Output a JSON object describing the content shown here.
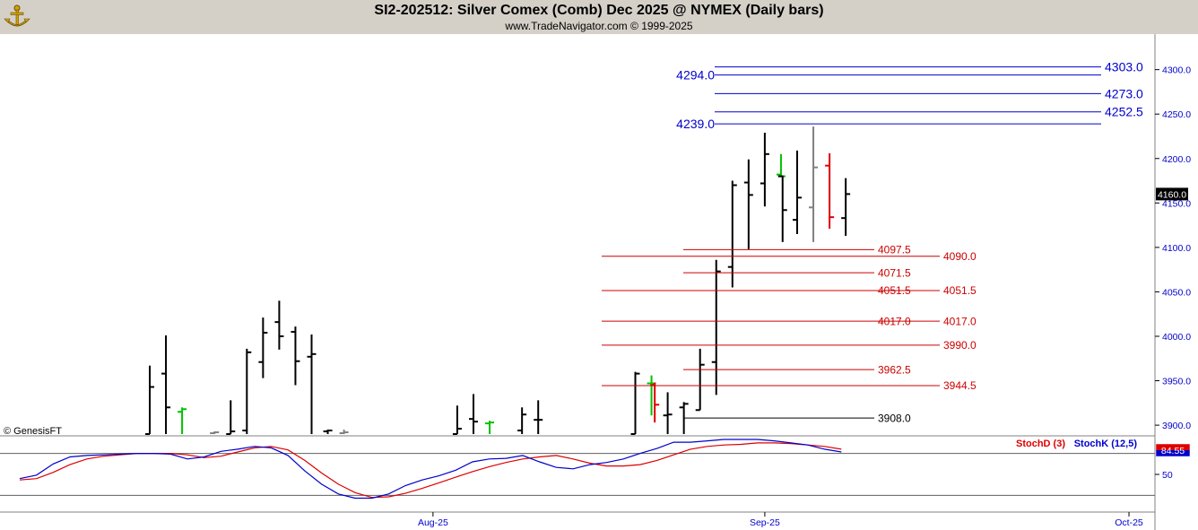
{
  "header": {
    "title": "SI2-202512:  Silver Comex (Comb) Dec 2025 @ NYMEX  (Daily bars)",
    "subtitle": "www.TradeNavigator.com © 1999-2025"
  },
  "colors": {
    "up": "#00c000",
    "down": "#e00000",
    "neutral": "#808080",
    "bar": "#000000",
    "fib_blue": "#0000cc",
    "fib_red": "#cc0000",
    "stoch_d": "#dd0000",
    "stoch_k": "#0000cc"
  },
  "chart_data": [
    {
      "type": "ohlc",
      "title": "SI2-202512:  Silver Comex (Comb) Dec 2025 @ NYMEX  (Daily bars)",
      "ylim": [
        3888,
        4340
      ],
      "yticks": [
        {
          "value": 3900,
          "label": "3900.0"
        },
        {
          "value": 3950,
          "label": "3950.0"
        },
        {
          "value": 4000,
          "label": "4000.0"
        },
        {
          "value": 4050,
          "label": "4050.0"
        },
        {
          "value": 4100,
          "label": "4100.0"
        },
        {
          "value": 4150,
          "label": "4150.0"
        },
        {
          "value": 4200,
          "label": "4200.0"
        },
        {
          "value": 4250,
          "label": "4250.0"
        },
        {
          "value": 4300,
          "label": "4300.0"
        }
      ],
      "last_price": {
        "value": 4160.0,
        "label": "4160.0"
      },
      "watermark": "© GenesisFT",
      "bars": [
        {
          "i": 6,
          "o": 3890,
          "h": 3967,
          "l": 3890,
          "c": 3943,
          "color": "bar"
        },
        {
          "i": 7,
          "o": 3958,
          "h": 4001,
          "l": 3890,
          "c": 3920,
          "color": "bar"
        },
        {
          "i": 8,
          "o": 3915,
          "h": 3920,
          "l": 3890,
          "c": 3918,
          "color": "up"
        },
        {
          "i": 10,
          "o": 3891,
          "h": 3893,
          "l": 3890,
          "c": 3892,
          "color": "neutral"
        },
        {
          "i": 11,
          "o": 3890,
          "h": 3928,
          "l": 3890,
          "c": 3893,
          "color": "bar"
        },
        {
          "i": 12,
          "o": 3894,
          "h": 3986,
          "l": 3890,
          "c": 3982,
          "color": "bar"
        },
        {
          "i": 13,
          "o": 3971,
          "h": 4021,
          "l": 3953,
          "c": 4004,
          "color": "bar"
        },
        {
          "i": 14,
          "o": 4016,
          "h": 4040,
          "l": 3985,
          "c": 4000,
          "color": "bar"
        },
        {
          "i": 15,
          "o": 4005,
          "h": 4011,
          "l": 3945,
          "c": 3972,
          "color": "bar"
        },
        {
          "i": 16,
          "o": 3977,
          "h": 4002,
          "l": 3890,
          "c": 3980,
          "color": "bar"
        },
        {
          "i": 17,
          "o": 3893,
          "h": 3895,
          "l": 3890,
          "c": 3894,
          "color": "bar"
        },
        {
          "i": 18,
          "o": 3891,
          "h": 3895,
          "l": 3890,
          "c": 3892,
          "color": "neutral"
        },
        {
          "i": 25,
          "o": 3890,
          "h": 3922,
          "l": 3890,
          "c": 3896,
          "color": "bar"
        },
        {
          "i": 26,
          "o": 3907,
          "h": 3935,
          "l": 3890,
          "c": 3904,
          "color": "bar"
        },
        {
          "i": 27,
          "o": 3902,
          "h": 3905,
          "l": 3890,
          "c": 3903,
          "color": "up"
        },
        {
          "i": 29,
          "o": 3894,
          "h": 3920,
          "l": 3890,
          "c": 3912,
          "color": "bar"
        },
        {
          "i": 30,
          "o": 3906,
          "h": 3928,
          "l": 3890,
          "c": 3906,
          "color": "bar"
        },
        {
          "i": 36,
          "o": 3890,
          "h": 3960,
          "l": 3890,
          "c": 3958,
          "color": "bar"
        },
        {
          "i": 37,
          "o": 3947,
          "h": 3956,
          "l": 3911,
          "c": 3947,
          "color": "up"
        },
        {
          "i": 37.2,
          "o": 3945,
          "h": 3948,
          "l": 3903,
          "c": 3923,
          "color": "down"
        },
        {
          "i": 38,
          "o": 3911,
          "h": 3937,
          "l": 3890,
          "c": 3912,
          "color": "bar"
        },
        {
          "i": 39,
          "o": 3920,
          "h": 3926,
          "l": 3890,
          "c": 3924,
          "color": "bar"
        },
        {
          "i": 40,
          "o": 3917,
          "h": 3986,
          "l": 3917,
          "c": 3968,
          "color": "bar"
        },
        {
          "i": 41,
          "o": 3971,
          "h": 4086,
          "l": 3934,
          "c": 4073,
          "color": "bar"
        },
        {
          "i": 42,
          "o": 4078,
          "h": 4175,
          "l": 4055,
          "c": 4170,
          "color": "bar"
        },
        {
          "i": 43,
          "o": 4173,
          "h": 4199,
          "l": 4098,
          "c": 4159,
          "color": "bar"
        },
        {
          "i": 44,
          "o": 4172,
          "h": 4229,
          "l": 4146,
          "c": 4205,
          "color": "bar"
        },
        {
          "i": 45,
          "o": 4182,
          "h": 4205,
          "l": 4180,
          "c": 4180,
          "color": "up"
        },
        {
          "i": 45.1,
          "o": 4180,
          "h": 4181,
          "l": 4106,
          "c": 4142,
          "color": "bar"
        },
        {
          "i": 46,
          "o": 4131,
          "h": 4209,
          "l": 4115,
          "c": 4156,
          "color": "bar"
        },
        {
          "i": 47,
          "o": 4145,
          "h": 4236,
          "l": 4106,
          "c": 4190,
          "color": "neutral"
        },
        {
          "i": 48,
          "o": 4192,
          "h": 4206,
          "l": 4121,
          "c": 4134,
          "color": "down"
        },
        {
          "i": 49,
          "o": 4133,
          "h": 4178,
          "l": 4113,
          "c": 4160,
          "color": "bar"
        }
      ],
      "levels": [
        {
          "value": 4303.0,
          "label": "4303.0",
          "color": "fib_blue",
          "label_side": "right"
        },
        {
          "value": 4294.0,
          "label": "4294.0",
          "color": "fib_blue",
          "label_side": "left"
        },
        {
          "value": 4273.0,
          "label": "4273.0",
          "color": "fib_blue",
          "label_side": "right"
        },
        {
          "value": 4252.5,
          "label": "4252.5",
          "color": "fib_blue",
          "label_side": "right"
        },
        {
          "value": 4239.0,
          "label": "4239.0",
          "color": "fib_blue",
          "label_side": "left"
        },
        {
          "value": 4097.5,
          "label": "4097.5",
          "color": "fib_red",
          "label_side": "mid"
        },
        {
          "value": 4090.0,
          "label": "4090.0",
          "color": "fib_red",
          "label_side": "far"
        },
        {
          "value": 4071.5,
          "label": "4071.5",
          "color": "fib_red",
          "label_side": "mid"
        },
        {
          "value": 4051.5,
          "label": "4051.5",
          "color": "fib_red",
          "label_side": "both"
        },
        {
          "value": 4017.0,
          "label": "4017.0",
          "color": "fib_red",
          "label_side": "both"
        },
        {
          "value": 3990.0,
          "label": "3990.0",
          "color": "fib_red",
          "label_side": "far"
        },
        {
          "value": 3962.5,
          "label": "3962.5",
          "color": "fib_red",
          "label_side": "mid"
        },
        {
          "value": 3944.5,
          "label": "3944.5",
          "color": "fib_red",
          "label_side": "far"
        },
        {
          "value": 3908.0,
          "label": "3908.0",
          "color": "bar",
          "label_side": "mid"
        }
      ]
    },
    {
      "type": "line",
      "ylim": [
        0,
        100
      ],
      "yticks": [
        {
          "value": 50,
          "label": "50"
        }
      ],
      "reference_lines": [
        80,
        20
      ],
      "last_value_label": "84.55",
      "series": [
        {
          "name": "StochD (3)",
          "color": "stoch_d",
          "values": [
            [
              0,
              42
            ],
            [
              1,
              44
            ],
            [
              2,
              53
            ],
            [
              3,
              64
            ],
            [
              4,
              72
            ],
            [
              5,
              76
            ],
            [
              6,
              78
            ],
            [
              7,
              80
            ],
            [
              8,
              80
            ],
            [
              9,
              80
            ],
            [
              10,
              78
            ],
            [
              11,
              74
            ],
            [
              12,
              76
            ],
            [
              13,
              82
            ],
            [
              14,
              88
            ],
            [
              15,
              90
            ],
            [
              16,
              85
            ],
            [
              17,
              70
            ],
            [
              18,
              52
            ],
            [
              19,
              36
            ],
            [
              20,
              24
            ],
            [
              21,
              17
            ],
            [
              22,
              18
            ],
            [
              23,
              23
            ],
            [
              24,
              30
            ],
            [
              25,
              38
            ],
            [
              26,
              46
            ],
            [
              27,
              54
            ],
            [
              28,
              61
            ],
            [
              29,
              67
            ],
            [
              30,
              72
            ],
            [
              31,
              75
            ],
            [
              32,
              77
            ],
            [
              33,
              72
            ],
            [
              34,
              66
            ],
            [
              35,
              62
            ],
            [
              36,
              62
            ],
            [
              37,
              64
            ],
            [
              38,
              70
            ],
            [
              39,
              78
            ],
            [
              40,
              86
            ],
            [
              41,
              90
            ],
            [
              42,
              92
            ],
            [
              43,
              93
            ],
            [
              44,
              95
            ],
            [
              45,
              95
            ],
            [
              46,
              94
            ],
            [
              47,
              92
            ],
            [
              48,
              90
            ],
            [
              49,
              86
            ]
          ]
        },
        {
          "name": "StochK (12,5)",
          "color": "stoch_k",
          "values": [
            [
              0,
              44
            ],
            [
              1,
              49
            ],
            [
              2,
              65
            ],
            [
              3,
              75
            ],
            [
              4,
              77
            ],
            [
              5,
              78
            ],
            [
              6,
              79
            ],
            [
              7,
              80
            ],
            [
              8,
              80
            ],
            [
              9,
              79
            ],
            [
              10,
              72
            ],
            [
              11,
              75
            ],
            [
              12,
              83
            ],
            [
              13,
              86
            ],
            [
              14,
              90
            ],
            [
              15,
              88
            ],
            [
              16,
              77
            ],
            [
              17,
              55
            ],
            [
              18,
              36
            ],
            [
              19,
              22
            ],
            [
              20,
              16
            ],
            [
              21,
              16
            ],
            [
              22,
              22
            ],
            [
              23,
              34
            ],
            [
              24,
              42
            ],
            [
              25,
              48
            ],
            [
              26,
              56
            ],
            [
              27,
              68
            ],
            [
              28,
              72
            ],
            [
              29,
              73
            ],
            [
              30,
              77
            ],
            [
              31,
              68
            ],
            [
              32,
              60
            ],
            [
              33,
              58
            ],
            [
              34,
              64
            ],
            [
              35,
              67
            ],
            [
              36,
              72
            ],
            [
              37,
              80
            ],
            [
              38,
              87
            ],
            [
              39,
              96
            ],
            [
              40,
              96
            ],
            [
              41,
              98
            ],
            [
              42,
              100
            ],
            [
              43,
              100
            ],
            [
              44,
              100
            ],
            [
              45,
              98
            ],
            [
              46,
              95
            ],
            [
              47,
              92
            ],
            [
              48,
              86
            ],
            [
              49,
              82
            ]
          ]
        }
      ]
    }
  ],
  "x_axis": {
    "labels": [
      {
        "i": 23.5,
        "label": "Aug-25"
      },
      {
        "i": 44,
        "label": "Sep-25"
      },
      {
        "i": 66.5,
        "label": "Oct-25"
      }
    ]
  }
}
